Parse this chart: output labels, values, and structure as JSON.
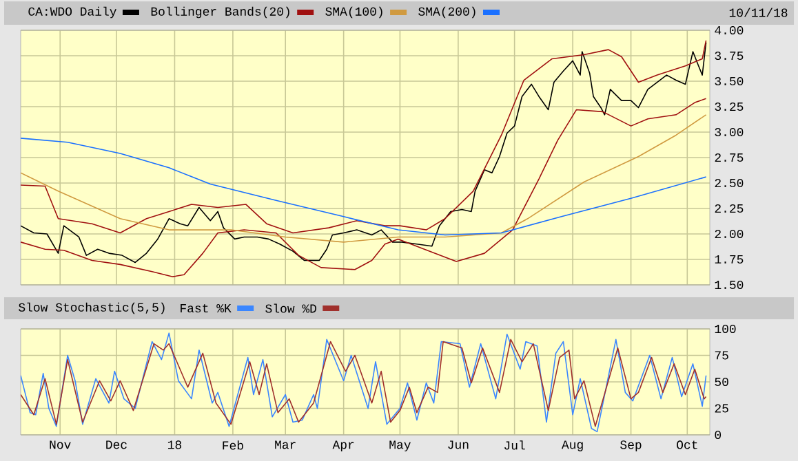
{
  "chart_data": [
    {
      "type": "line",
      "annotations": [
        "10/11/18"
      ],
      "legend": "top",
      "grid": true,
      "tick_labels": "y",
      "xlim": [
        "2017-10-11",
        "2018-10-13"
      ],
      "ylim": [
        1.5,
        4.0
      ],
      "xticks": [
        {
          "value": "2017-11-01",
          "label": null
        },
        {
          "value": "2017-12-01",
          "label": null
        },
        {
          "value": "2018-01-01",
          "label": null
        },
        {
          "value": "2018-02-01",
          "label": null
        },
        {
          "value": "2018-03-01",
          "label": null
        },
        {
          "value": "2018-04-01",
          "label": null
        },
        {
          "value": "2018-05-01",
          "label": null
        },
        {
          "value": "2018-06-01",
          "label": null
        },
        {
          "value": "2018-07-01",
          "label": null
        },
        {
          "value": "2018-08-01",
          "label": null
        },
        {
          "value": "2018-09-01",
          "label": null
        },
        {
          "value": "2018-10-01",
          "label": null
        }
      ],
      "yticks": [
        {
          "value": 1.5,
          "label": "1.50"
        },
        {
          "value": 1.75,
          "label": "1.75"
        },
        {
          "value": 2.0,
          "label": "2.00"
        },
        {
          "value": 2.25,
          "label": "2.25"
        },
        {
          "value": 2.5,
          "label": "2.50"
        },
        {
          "value": 2.75,
          "label": "2.75"
        },
        {
          "value": 3.0,
          "label": "3.00"
        },
        {
          "value": 3.25,
          "label": "3.25"
        },
        {
          "value": 3.5,
          "label": "3.50"
        },
        {
          "value": 3.75,
          "label": "3.75"
        },
        {
          "value": 4.0,
          "label": "4.00"
        }
      ],
      "series": [
        {
          "name": "CA:WDO Daily",
          "color": "#000000",
          "x": [
            "2017-10-11",
            "2017-10-18",
            "2017-10-25",
            "2017-10-31",
            "2017-11-03",
            "2017-11-11",
            "2017-11-15",
            "2017-11-21",
            "2017-11-27",
            "2017-12-04",
            "2017-12-11",
            "2017-12-17",
            "2017-12-23",
            "2017-12-29",
            "2018-01-04",
            "2018-01-08",
            "2018-01-14",
            "2018-01-20",
            "2018-01-24",
            "2018-01-27",
            "2018-02-02",
            "2018-02-07",
            "2018-02-14",
            "2018-02-20",
            "2018-02-26",
            "2018-03-05",
            "2018-03-11",
            "2018-03-19",
            "2018-03-23",
            "2018-03-26",
            "2018-04-01",
            "2018-04-08",
            "2018-04-16",
            "2018-04-21",
            "2018-04-27",
            "2018-05-02",
            "2018-05-10",
            "2018-05-18",
            "2018-05-22",
            "2018-05-28",
            "2018-06-03",
            "2018-06-08",
            "2018-06-10",
            "2018-06-15",
            "2018-06-19",
            "2018-06-23",
            "2018-06-27",
            "2018-07-01",
            "2018-07-05",
            "2018-07-10",
            "2018-07-14",
            "2018-07-19",
            "2018-07-22",
            "2018-07-27",
            "2018-08-01",
            "2018-08-05",
            "2018-08-06",
            "2018-08-10",
            "2018-08-12",
            "2018-08-16",
            "2018-08-18",
            "2018-08-21",
            "2018-08-27",
            "2018-09-01",
            "2018-09-05",
            "2018-09-10",
            "2018-09-15",
            "2018-09-20",
            "2018-09-25",
            "2018-09-30",
            "2018-10-04",
            "2018-10-07",
            "2018-10-09",
            "2018-10-11"
          ],
          "values": [
            2.08,
            2.01,
            2.0,
            1.81,
            2.08,
            1.97,
            1.79,
            1.85,
            1.81,
            1.79,
            1.72,
            1.81,
            1.95,
            2.15,
            2.1,
            2.08,
            2.26,
            2.13,
            2.22,
            2.06,
            1.95,
            1.97,
            1.97,
            1.95,
            1.9,
            1.83,
            1.74,
            1.74,
            1.85,
            1.99,
            2.01,
            2.04,
            1.99,
            2.04,
            1.92,
            1.92,
            1.9,
            1.88,
            2.08,
            2.22,
            2.24,
            2.22,
            2.42,
            2.63,
            2.6,
            2.76,
            2.99,
            3.06,
            3.35,
            3.47,
            3.35,
            3.22,
            3.49,
            3.6,
            3.7,
            3.56,
            3.79,
            3.58,
            3.35,
            3.24,
            3.17,
            3.42,
            3.31,
            3.31,
            3.24,
            3.42,
            3.49,
            3.56,
            3.51,
            3.47,
            3.79,
            3.65,
            3.56,
            3.88
          ]
        },
        {
          "name": "Bollinger Bands(20)",
          "color": "#a01010",
          "x": [
            "2017-10-11",
            "2017-10-24",
            "2017-10-31",
            "2017-11-18",
            "2017-12-03",
            "2017-12-17",
            "2017-12-29",
            "2018-01-10",
            "2018-01-24",
            "2018-02-08",
            "2018-02-19",
            "2018-03-05",
            "2018-03-24",
            "2018-04-08",
            "2018-04-23",
            "2018-05-01",
            "2018-05-15",
            "2018-05-25",
            "2018-06-09",
            "2018-06-24",
            "2018-07-06",
            "2018-07-21",
            "2018-08-07",
            "2018-08-20",
            "2018-08-27",
            "2018-09-05",
            "2018-09-15",
            "2018-09-30",
            "2018-10-09",
            "2018-10-11"
          ],
          "values": [
            2.48,
            2.47,
            2.15,
            2.1,
            2.01,
            2.15,
            2.22,
            2.29,
            2.26,
            2.29,
            2.1,
            2.01,
            2.06,
            2.13,
            2.08,
            2.08,
            2.04,
            2.15,
            2.42,
            2.97,
            3.51,
            3.72,
            3.76,
            3.81,
            3.74,
            3.49,
            3.56,
            3.65,
            3.72,
            3.9
          ]
        },
        {
          "color": "#a01010",
          "x": [
            "2017-10-11",
            "2017-10-24",
            "2017-11-03",
            "2017-11-18",
            "2017-12-03",
            "2017-12-20",
            "2017-12-31",
            "2018-01-06",
            "2018-01-16",
            "2018-01-24",
            "2018-02-07",
            "2018-02-24",
            "2018-03-08",
            "2018-03-20",
            "2018-04-07",
            "2018-04-16",
            "2018-04-23",
            "2018-04-30",
            "2018-05-14",
            "2018-05-31",
            "2018-06-15",
            "2018-06-30",
            "2018-07-14",
            "2018-07-24",
            "2018-08-03",
            "2018-08-17",
            "2018-09-01",
            "2018-09-10",
            "2018-09-25",
            "2018-10-05",
            "2018-10-11"
          ],
          "values": [
            1.92,
            1.85,
            1.84,
            1.74,
            1.7,
            1.63,
            1.58,
            1.6,
            1.81,
            2.01,
            2.04,
            2.01,
            1.79,
            1.67,
            1.65,
            1.74,
            1.9,
            1.95,
            1.85,
            1.73,
            1.81,
            2.04,
            2.54,
            2.92,
            3.22,
            3.2,
            3.06,
            3.13,
            3.17,
            3.29,
            3.33
          ]
        },
        {
          "name": "SMA(100)",
          "color": "#d09a40",
          "x": [
            "2017-10-11",
            "2017-10-31",
            "2017-12-03",
            "2017-12-29",
            "2018-01-31",
            "2018-03-01",
            "2018-04-01",
            "2018-04-30",
            "2018-05-25",
            "2018-06-24",
            "2018-07-08",
            "2018-08-07",
            "2018-09-05",
            "2018-09-25",
            "2018-10-11"
          ],
          "values": [
            2.6,
            2.42,
            2.15,
            2.04,
            2.04,
            1.97,
            1.92,
            1.97,
            1.97,
            2.01,
            2.15,
            2.51,
            2.76,
            2.97,
            3.17
          ]
        },
        {
          "name": "SMA(200)",
          "color": "#1a70ff",
          "x": [
            "2017-10-11",
            "2017-11-05",
            "2017-12-03",
            "2017-12-29",
            "2018-01-20",
            "2018-02-24",
            "2018-04-01",
            "2018-04-30",
            "2018-05-25",
            "2018-06-24",
            "2018-07-26",
            "2018-09-01",
            "2018-10-11"
          ],
          "values": [
            2.94,
            2.9,
            2.79,
            2.65,
            2.49,
            2.33,
            2.17,
            2.04,
            1.99,
            2.01,
            2.17,
            2.35,
            2.56
          ]
        }
      ]
    },
    {
      "type": "line",
      "title": "Slow Stochastic(5,5)",
      "legend": "top",
      "grid": true,
      "xlim": [
        "2017-10-11",
        "2018-10-13"
      ],
      "ylim": [
        0,
        100
      ],
      "xticks": [
        {
          "value": "2017-11-01",
          "label": "Nov"
        },
        {
          "value": "2017-12-01",
          "label": "Dec"
        },
        {
          "value": "2018-01-01",
          "label": "18"
        },
        {
          "value": "2018-02-01",
          "label": "Feb"
        },
        {
          "value": "2018-03-01",
          "label": "Mar"
        },
        {
          "value": "2018-04-01",
          "label": "Apr"
        },
        {
          "value": "2018-05-01",
          "label": "May"
        },
        {
          "value": "2018-06-01",
          "label": "Jun"
        },
        {
          "value": "2018-07-01",
          "label": "Jul"
        },
        {
          "value": "2018-08-01",
          "label": "Aug"
        },
        {
          "value": "2018-09-01",
          "label": "Sep"
        },
        {
          "value": "2018-10-01",
          "label": "Oct"
        }
      ],
      "yticks": [
        0,
        25,
        50,
        75,
        100
      ],
      "series": [
        {
          "name": "Fast %K",
          "color": "#3a86ff",
          "x": [
            "2017-10-11",
            "2017-10-16",
            "2017-10-19",
            "2017-10-23",
            "2017-10-26",
            "2017-10-30",
            "2017-11-05",
            "2017-11-09",
            "2017-11-13",
            "2017-11-20",
            "2017-11-27",
            "2017-11-30",
            "2017-12-05",
            "2017-12-11",
            "2017-12-20",
            "2017-12-25",
            "2017-12-29",
            "2018-01-03",
            "2018-01-10",
            "2018-01-14",
            "2018-01-21",
            "2018-01-24",
            "2018-01-30",
            "2018-02-09",
            "2018-02-12",
            "2018-02-17",
            "2018-02-22",
            "2018-03-01",
            "2018-03-05",
            "2018-03-10",
            "2018-03-16",
            "2018-03-18",
            "2018-03-23",
            "2018-04-01",
            "2018-04-05",
            "2018-04-14",
            "2018-04-18",
            "2018-04-24",
            "2018-05-01",
            "2018-05-05",
            "2018-05-10",
            "2018-05-15",
            "2018-05-19",
            "2018-05-23",
            "2018-06-02",
            "2018-06-07",
            "2018-06-13",
            "2018-06-21",
            "2018-06-27",
            "2018-07-04",
            "2018-07-07",
            "2018-07-13",
            "2018-07-18",
            "2018-07-23",
            "2018-07-27",
            "2018-08-01",
            "2018-08-05",
            "2018-08-11",
            "2018-08-14",
            "2018-08-24",
            "2018-08-29",
            "2018-09-02",
            "2018-09-11",
            "2018-09-17",
            "2018-09-23",
            "2018-09-28",
            "2018-10-04",
            "2018-10-09",
            "2018-10-11"
          ],
          "values": [
            56,
            21,
            19,
            58,
            25,
            8,
            75,
            51,
            10,
            53,
            30,
            60,
            34,
            25,
            88,
            71,
            96,
            51,
            34,
            80,
            30,
            40,
            8,
            73,
            38,
            71,
            17,
            38,
            12,
            14,
            38,
            25,
            90,
            51,
            75,
            25,
            69,
            10,
            25,
            49,
            14,
            49,
            30,
            88,
            86,
            45,
            86,
            34,
            95,
            62,
            88,
            84,
            12,
            77,
            88,
            19,
            53,
            6,
            3,
            90,
            40,
            32,
            75,
            34,
            73,
            36,
            67,
            27,
            56
          ]
        },
        {
          "name": "Slow %D",
          "color": "#a0302c",
          "x": [
            "2017-10-11",
            "2017-10-18",
            "2017-10-24",
            "2017-10-30",
            "2017-11-05",
            "2017-11-13",
            "2017-11-22",
            "2017-11-28",
            "2017-12-03",
            "2017-12-10",
            "2017-12-21",
            "2017-12-26",
            "2017-12-29",
            "2018-01-08",
            "2018-01-16",
            "2018-01-23",
            "2018-01-31",
            "2018-02-10",
            "2018-02-15",
            "2018-02-19",
            "2018-02-25",
            "2018-03-03",
            "2018-03-08",
            "2018-03-16",
            "2018-03-25",
            "2018-04-02",
            "2018-04-07",
            "2018-04-16",
            "2018-04-21",
            "2018-04-26",
            "2018-05-01",
            "2018-05-06",
            "2018-05-10",
            "2018-05-16",
            "2018-05-21",
            "2018-05-24",
            "2018-06-03",
            "2018-06-08",
            "2018-06-14",
            "2018-06-23",
            "2018-06-29",
            "2018-07-05",
            "2018-07-11",
            "2018-07-19",
            "2018-07-25",
            "2018-07-30",
            "2018-08-02",
            "2018-08-07",
            "2018-08-13",
            "2018-08-25",
            "2018-09-01",
            "2018-09-05",
            "2018-09-12",
            "2018-09-18",
            "2018-09-24",
            "2018-09-30",
            "2018-10-05",
            "2018-10-10",
            "2018-10-11"
          ],
          "values": [
            38,
            19,
            53,
            10,
            71,
            12,
            51,
            32,
            51,
            23,
            86,
            80,
            86,
            45,
            77,
            30,
            10,
            69,
            38,
            67,
            21,
            34,
            12,
            30,
            88,
            60,
            75,
            30,
            60,
            12,
            23,
            45,
            21,
            45,
            40,
            88,
            82,
            49,
            82,
            40,
            90,
            69,
            86,
            23,
            73,
            80,
            34,
            51,
            8,
            82,
            34,
            40,
            73,
            40,
            67,
            38,
            62,
            34,
            36
          ]
        }
      ]
    }
  ]
}
